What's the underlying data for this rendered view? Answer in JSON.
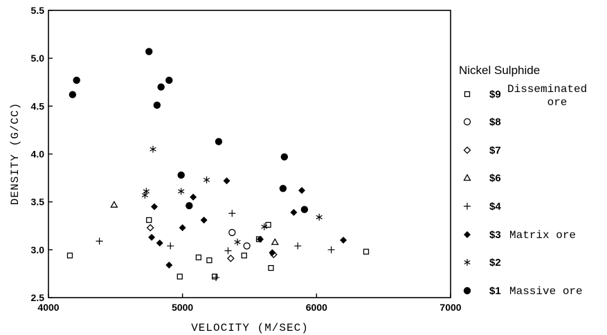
{
  "chart_data": {
    "type": "scatter",
    "xlabel": "VELOCITY (M/SEC)",
    "ylabel": "DENSITY (G/CC)",
    "xlim": [
      4000,
      7000
    ],
    "ylim": [
      2.5,
      5.5
    ],
    "xticks": [
      "4000",
      "5000",
      "6000",
      "7000"
    ],
    "yticks": [
      "2.5",
      "3.0",
      "3.5",
      "4.0",
      "4.5",
      "5.0",
      "5.5"
    ],
    "legend_title": "Nickel Sulphide",
    "legend_position": "right",
    "series": [
      {
        "name": "$9",
        "description": "Disseminated ore",
        "marker": "square",
        "points": [
          [
            4160,
            2.94
          ],
          [
            4750,
            3.31
          ],
          [
            4980,
            2.72
          ],
          [
            5120,
            2.92
          ],
          [
            5200,
            2.89
          ],
          [
            5240,
            2.72
          ],
          [
            5460,
            2.94
          ],
          [
            5570,
            3.11
          ],
          [
            5640,
            3.26
          ],
          [
            5660,
            2.81
          ],
          [
            6370,
            2.98
          ]
        ]
      },
      {
        "name": "$8",
        "description": "",
        "marker": "circle",
        "points": [
          [
            5370,
            3.18
          ],
          [
            5480,
            3.04
          ]
        ]
      },
      {
        "name": "$7",
        "description": "",
        "marker": "diamond",
        "points": [
          [
            4760,
            3.23
          ],
          [
            5360,
            2.91
          ],
          [
            5680,
            2.95
          ]
        ]
      },
      {
        "name": "$6",
        "description": "",
        "marker": "triangle",
        "points": [
          [
            4490,
            3.47
          ],
          [
            5690,
            3.08
          ]
        ]
      },
      {
        "name": "$4",
        "description": "",
        "marker": "plus",
        "points": [
          [
            4380,
            3.09
          ],
          [
            4910,
            3.04
          ],
          [
            5250,
            2.71
          ],
          [
            5340,
            2.99
          ],
          [
            5370,
            3.38
          ],
          [
            5860,
            3.04
          ],
          [
            6110,
            3.0
          ]
        ]
      },
      {
        "name": "$3",
        "description": "Matrix ore",
        "marker": "filled-diamond",
        "points": [
          [
            4770,
            3.13
          ],
          [
            4790,
            3.45
          ],
          [
            4830,
            3.07
          ],
          [
            4900,
            2.84
          ],
          [
            5000,
            3.23
          ],
          [
            5080,
            3.55
          ],
          [
            5160,
            3.31
          ],
          [
            5330,
            3.72
          ],
          [
            5580,
            3.11
          ],
          [
            5670,
            2.97
          ],
          [
            5830,
            3.39
          ],
          [
            5890,
            3.62
          ],
          [
            6200,
            3.1
          ]
        ]
      },
      {
        "name": "$2",
        "description": "",
        "marker": "asterisk",
        "points": [
          [
            4720,
            3.57
          ],
          [
            4730,
            3.61
          ],
          [
            4780,
            4.05
          ],
          [
            4990,
            3.61
          ],
          [
            5180,
            3.73
          ],
          [
            5410,
            3.08
          ],
          [
            5610,
            3.24
          ],
          [
            6020,
            3.34
          ]
        ]
      },
      {
        "name": "$1",
        "description": "Massive ore",
        "marker": "filled-circle",
        "points": [
          [
            4180,
            4.62
          ],
          [
            4210,
            4.77
          ],
          [
            4750,
            5.07
          ],
          [
            4810,
            4.51
          ],
          [
            4840,
            4.7
          ],
          [
            4900,
            4.77
          ],
          [
            4990,
            3.78
          ],
          [
            5050,
            3.46
          ],
          [
            5270,
            4.13
          ],
          [
            5760,
            3.97
          ],
          [
            5750,
            3.64
          ],
          [
            5910,
            3.42
          ]
        ]
      }
    ]
  }
}
